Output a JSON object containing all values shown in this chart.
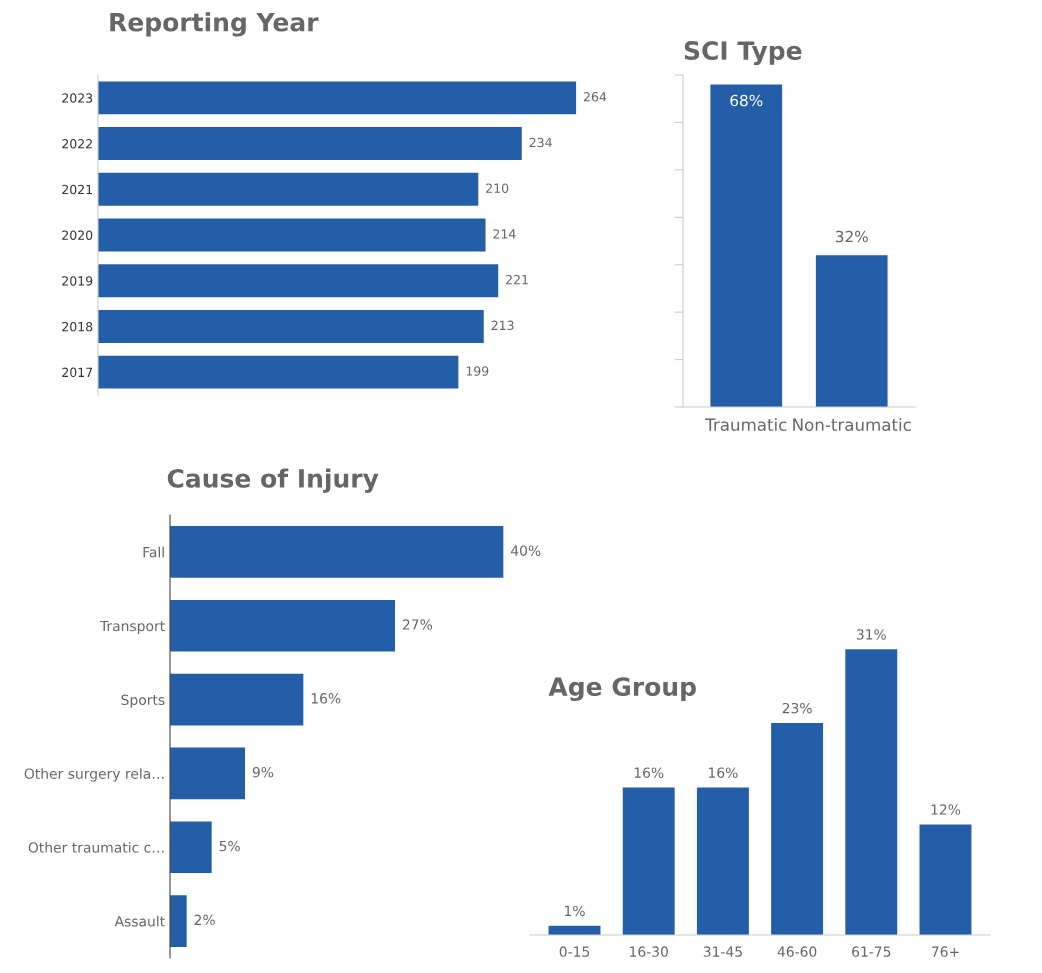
{
  "chart_data": [
    {
      "type": "bar",
      "title": "Reporting Year",
      "orientation": "horizontal",
      "categories": [
        "2023",
        "2022",
        "2021",
        "2020",
        "2019",
        "2018",
        "2017"
      ],
      "values": [
        264,
        234,
        210,
        214,
        221,
        213,
        199
      ],
      "color": "#245ea8",
      "data_labels": true,
      "tick_labels": "y"
    },
    {
      "type": "bar",
      "title": "SCI Type",
      "categories": [
        "Traumatic",
        "Non-traumatic"
      ],
      "values": [
        68,
        32
      ],
      "value_labels": [
        "68%",
        "32%"
      ],
      "color": "#245ea8",
      "ylim": [
        0,
        70
      ],
      "yticks": [
        {
          "value": 0,
          "label": null
        },
        {
          "value": 10,
          "label": null
        },
        {
          "value": 20,
          "label": null
        },
        {
          "value": 30,
          "label": null
        },
        {
          "value": 40,
          "label": null
        },
        {
          "value": 50,
          "label": null
        },
        {
          "value": 60,
          "label": null
        },
        {
          "value": 70,
          "label": null
        }
      ],
      "tick_labels": "x"
    },
    {
      "type": "bar",
      "title": "Cause of Injury",
      "orientation": "horizontal",
      "categories": [
        "Fall",
        "Transport",
        "Sports",
        "Other surgery rela…",
        "Other traumatic c…",
        "Assault"
      ],
      "values": [
        40,
        27,
        16,
        9,
        5,
        2
      ],
      "value_labels": [
        "40%",
        "27%",
        "16%",
        "9%",
        "5%",
        "2%"
      ],
      "color": "#245ea8",
      "tick_labels": "y"
    },
    {
      "type": "bar",
      "title": "Age Group",
      "categories": [
        "0-15",
        "16-30",
        "31-45",
        "46-60",
        "61-75",
        "76+"
      ],
      "values": [
        1,
        16,
        16,
        23,
        31,
        12
      ],
      "value_labels": [
        "1%",
        "16%",
        "16%",
        "23%",
        "31%",
        "12%"
      ],
      "color": "#245ea8",
      "tick_labels": "x"
    }
  ]
}
